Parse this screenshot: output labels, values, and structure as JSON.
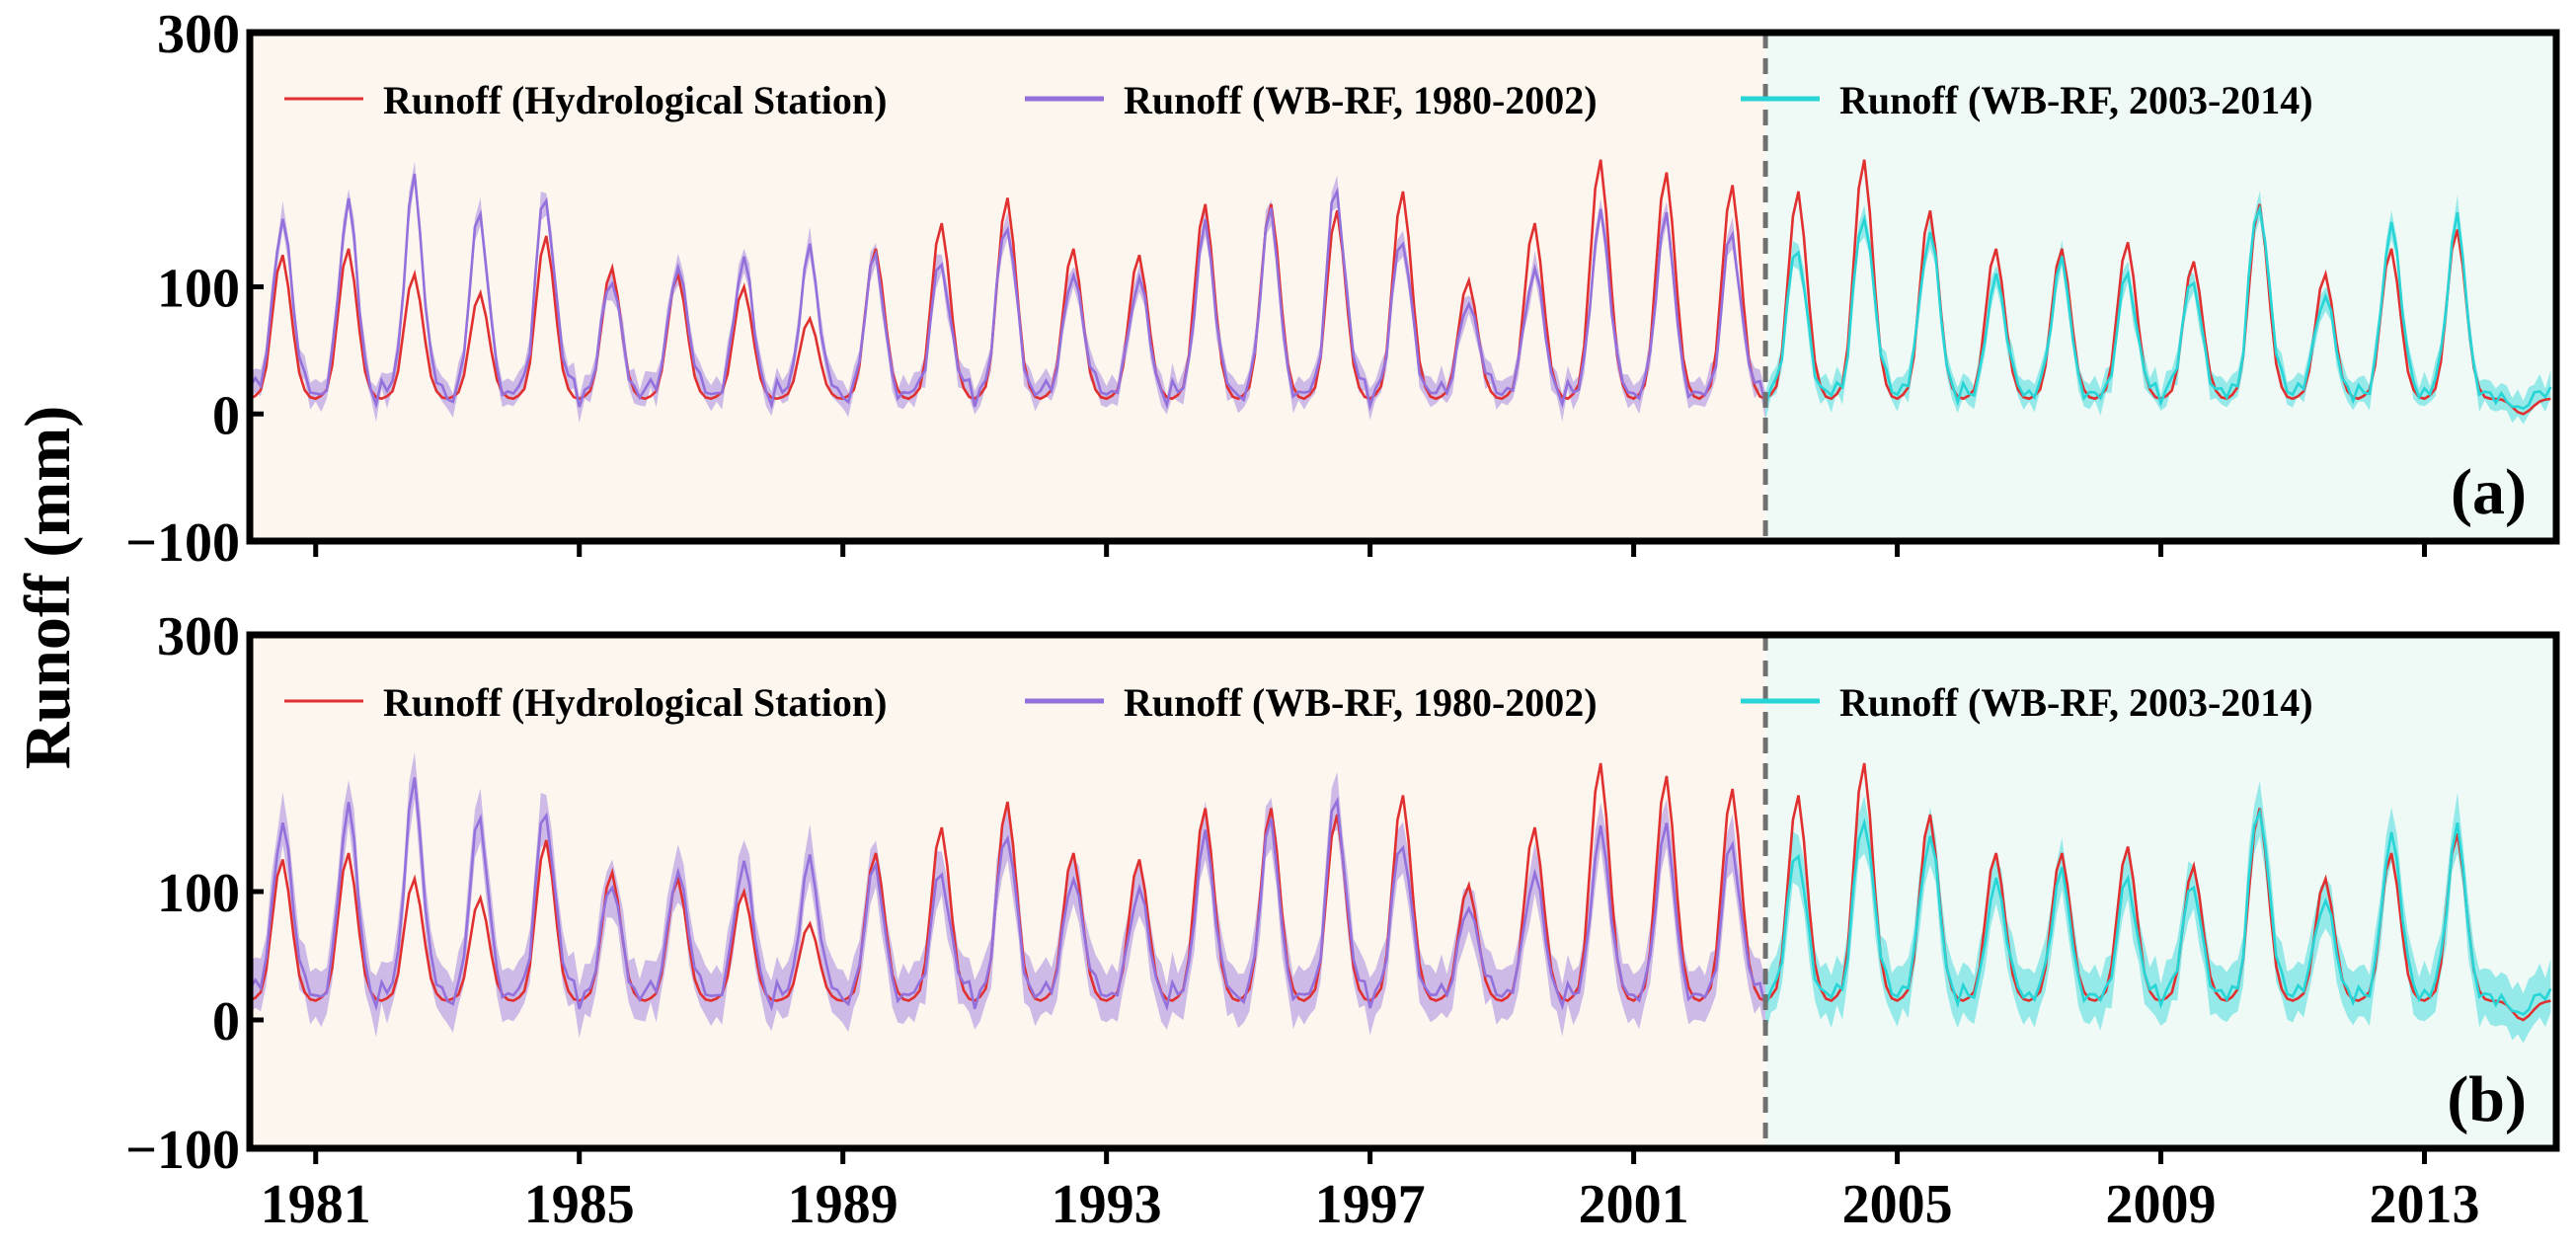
{
  "figure": {
    "ylabel": "Runoff (mm)",
    "colors": {
      "station": "#e03030",
      "rf_calib": "#9370db",
      "rf_valid": "#27d4d6",
      "bg_calib": "#fdf6ee",
      "bg_valid": "#effaf6",
      "divider": "#707070"
    }
  },
  "chart_data": [
    {
      "type": "line",
      "panel_label": "(a)",
      "xlim": [
        1980.0,
        2015.0
      ],
      "ylim": [
        -100,
        300
      ],
      "yticks": [
        300,
        100,
        0,
        -100
      ],
      "ytick_labels": [
        "300",
        "100",
        "0",
        "−100"
      ],
      "xticks": [
        1981,
        1985,
        1989,
        1993,
        1997,
        2001,
        2005,
        2009,
        2013
      ],
      "xtick_labels": [
        "1981",
        "1985",
        "1989",
        "1993",
        "1997",
        "2001",
        "2005",
        "2009",
        "2013"
      ],
      "split_year": 2003.0,
      "legend": [
        "Runoff (Hydrological Station)",
        "Runoff (WB-RF, 1980-2002)",
        "Runoff (WB-RF, 2003-2014)"
      ],
      "annual_peaks": {
        "years": [
          1980,
          1981,
          1982,
          1983,
          1984,
          1985,
          1986,
          1987,
          1988,
          1989,
          1990,
          1991,
          1992,
          1993,
          1994,
          1995,
          1996,
          1997,
          1998,
          1999,
          2000,
          2001,
          2002,
          2003,
          2004,
          2005,
          2006,
          2007,
          2008,
          2009,
          2010,
          2011,
          2012,
          2013,
          2014
        ],
        "station": [
          125,
          130,
          110,
          95,
          140,
          115,
          110,
          100,
          75,
          130,
          150,
          170,
          130,
          125,
          165,
          165,
          160,
          175,
          105,
          150,
          200,
          190,
          180,
          175,
          200,
          160,
          130,
          130,
          135,
          120,
          165,
          110,
          130,
          145,
          0
        ],
        "model": [
          165,
          170,
          185,
          160,
          185,
          115,
          125,
          125,
          130,
          125,
          125,
          165,
          120,
          110,
          150,
          160,
          185,
          150,
          95,
          120,
          160,
          155,
          145,
          140,
          175,
          155,
          110,
          120,
          110,
          110,
          185,
          100,
          155,
          155,
          0
        ]
      },
      "baseflow_mm": 12,
      "band_halfwidth_mm": 10
    },
    {
      "type": "line",
      "panel_label": "(b)",
      "xlim": [
        1980.0,
        2015.0
      ],
      "ylim": [
        -100,
        300
      ],
      "yticks": [
        300,
        100,
        0,
        -100
      ],
      "ytick_labels": [
        "300",
        "100",
        "0",
        "−100"
      ],
      "xticks": [
        1981,
        1985,
        1989,
        1993,
        1997,
        2001,
        2005,
        2009,
        2013
      ],
      "xtick_labels": [
        "1981",
        "1985",
        "1989",
        "1993",
        "1997",
        "2001",
        "2005",
        "2009",
        "2013"
      ],
      "split_year": 2003.0,
      "legend": [
        "Runoff (Hydrological Station)",
        "Runoff (WB-RF, 1980-2002)",
        "Runoff (WB-RF, 2003-2014)"
      ],
      "annual_peaks": {
        "years": [
          1980,
          1981,
          1982,
          1983,
          1984,
          1985,
          1986,
          1987,
          1988,
          1989,
          1990,
          1991,
          1992,
          1993,
          1994,
          1995,
          1996,
          1997,
          1998,
          1999,
          2000,
          2001,
          2002,
          2003,
          2004,
          2005,
          2006,
          2007,
          2008,
          2009,
          2010,
          2011,
          2012,
          2013,
          2014
        ],
        "station": [
          125,
          130,
          110,
          95,
          140,
          115,
          110,
          100,
          75,
          130,
          150,
          170,
          130,
          125,
          165,
          165,
          160,
          175,
          105,
          150,
          200,
          190,
          180,
          175,
          200,
          160,
          130,
          130,
          135,
          120,
          165,
          110,
          130,
          145,
          0
        ],
        "model": [
          165,
          170,
          185,
          160,
          175,
          115,
          125,
          125,
          125,
          120,
          120,
          160,
          120,
          105,
          145,
          155,
          180,
          150,
          95,
          120,
          150,
          150,
          140,
          140,
          175,
          155,
          110,
          115,
          110,
          110,
          185,
          100,
          150,
          150,
          0
        ]
      },
      "baseflow_mm": 15,
      "band_halfwidth_mm": 20
    }
  ]
}
